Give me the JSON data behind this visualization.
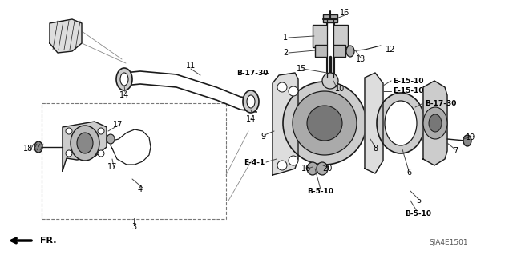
{
  "bg_color": "#ffffff",
  "diagram_code": "SJA4E1501",
  "fr_label": "FR.",
  "figsize": [
    6.4,
    3.19
  ],
  "dpi": 100,
  "xlim": [
    0,
    640
  ],
  "ylim": [
    0,
    319
  ]
}
